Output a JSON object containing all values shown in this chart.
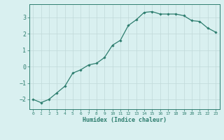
{
  "x": [
    0,
    1,
    2,
    3,
    4,
    5,
    6,
    7,
    8,
    9,
    10,
    11,
    12,
    13,
    14,
    15,
    16,
    17,
    18,
    19,
    20,
    21,
    22,
    23
  ],
  "y": [
    -2.0,
    -2.2,
    -2.0,
    -1.6,
    -1.2,
    -0.4,
    -0.2,
    0.1,
    0.2,
    0.55,
    1.3,
    1.6,
    2.5,
    2.85,
    3.3,
    3.35,
    3.2,
    3.2,
    3.2,
    3.1,
    2.8,
    2.75,
    2.35,
    2.1
  ],
  "line_color": "#2d7d6e",
  "marker": "D",
  "marker_size": 1.8,
  "line_width": 0.9,
  "xlabel": "Humidex (Indice chaleur)",
  "xlabel_fontsize": 6.0,
  "bg_color": "#d9f0f0",
  "grid_color": "#c0d8d8",
  "tick_color": "#2d7d6e",
  "axis_color": "#2d7d6e",
  "ylim": [
    -2.6,
    3.8
  ],
  "xlim": [
    -0.5,
    23.5
  ],
  "yticks": [
    -2,
    -1,
    0,
    1,
    2,
    3
  ],
  "xtick_labels": [
    "0",
    "1",
    "2",
    "3",
    "4",
    "5",
    "6",
    "7",
    "8",
    "9",
    "10",
    "11",
    "12",
    "13",
    "14",
    "15",
    "16",
    "17",
    "18",
    "19",
    "20",
    "21",
    "22",
    "23"
  ],
  "ytick_fontsize": 6.0,
  "xtick_fontsize": 4.5
}
